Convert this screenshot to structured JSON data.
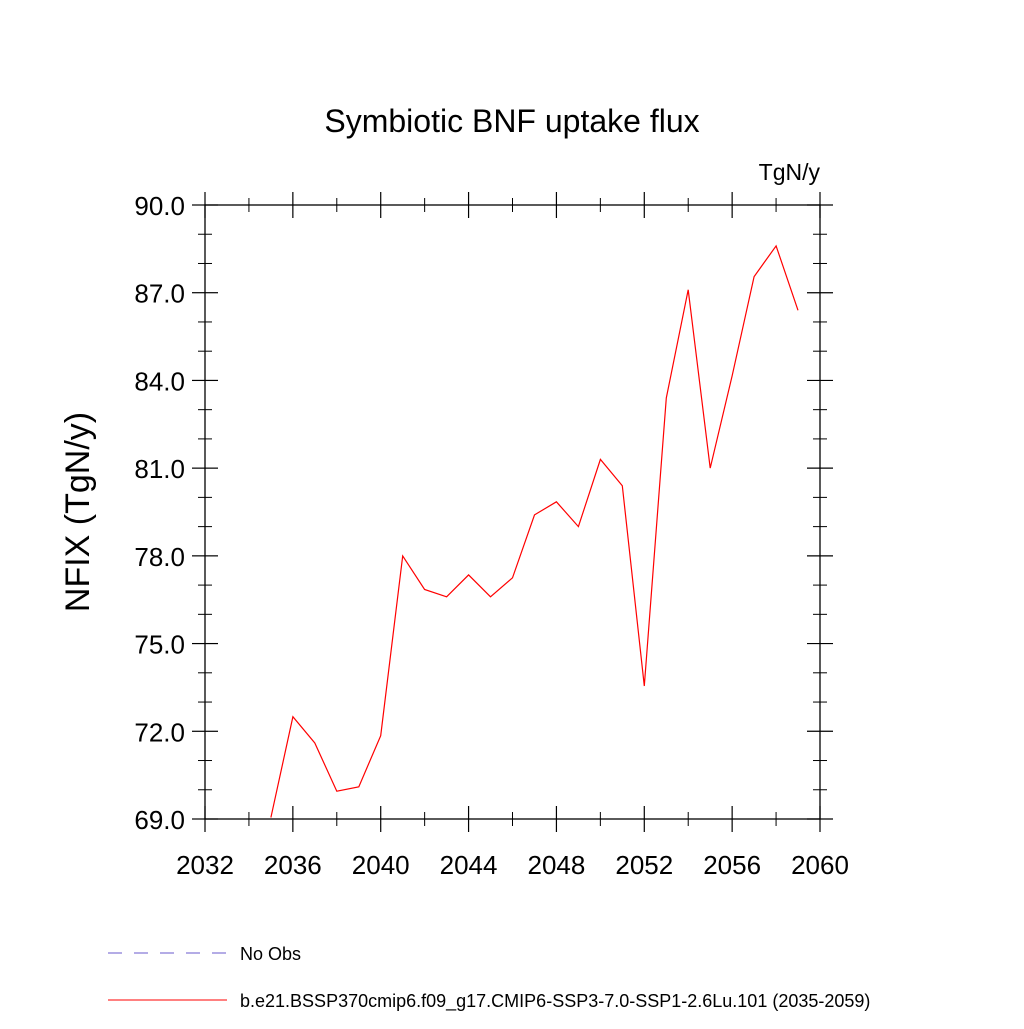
{
  "chart_data": {
    "type": "line",
    "title": "Symbiotic BNF uptake flux",
    "units_label": "TgN/y",
    "ylabel": "NFIX  (TgN/y)",
    "xlabel": "",
    "xlim": [
      2032,
      2060
    ],
    "ylim": [
      69.0,
      90.0
    ],
    "x_ticks": [
      2032,
      2036,
      2040,
      2044,
      2048,
      2052,
      2056,
      2060
    ],
    "y_ticks": [
      69.0,
      72.0,
      75.0,
      78.0,
      81.0,
      84.0,
      87.0,
      90.0
    ],
    "y_minor_step": 1.0,
    "x_minor_step": 2,
    "grid": false,
    "legend_position": "bottom",
    "legend": [
      {
        "label": "No Obs",
        "color": "#6a5acd",
        "dash": true
      },
      {
        "label": "b.e21.BSSP370cmip6.f09_g17.CMIP6-SSP3-7.0-SSP1-2.6Lu.101 (2035-2059)",
        "color": "#ff0000",
        "dash": false
      }
    ],
    "series": [
      {
        "name": "b.e21.BSSP370cmip6.f09_g17.CMIP6-SSP3-7.0-SSP1-2.6Lu.101 (2035-2059)",
        "color": "#ff0000",
        "x": [
          2035,
          2036,
          2037,
          2038,
          2039,
          2040,
          2041,
          2042,
          2043,
          2044,
          2045,
          2046,
          2047,
          2048,
          2049,
          2050,
          2051,
          2052,
          2053,
          2054,
          2055,
          2056,
          2057,
          2058,
          2059
        ],
        "y": [
          69.05,
          72.5,
          71.6,
          69.95,
          70.1,
          71.85,
          78.0,
          76.85,
          76.6,
          77.35,
          76.6,
          77.25,
          79.4,
          79.85,
          79.0,
          81.3,
          80.4,
          73.55,
          83.4,
          87.1,
          81.0,
          84.15,
          87.55,
          88.6,
          86.4
        ]
      }
    ]
  }
}
